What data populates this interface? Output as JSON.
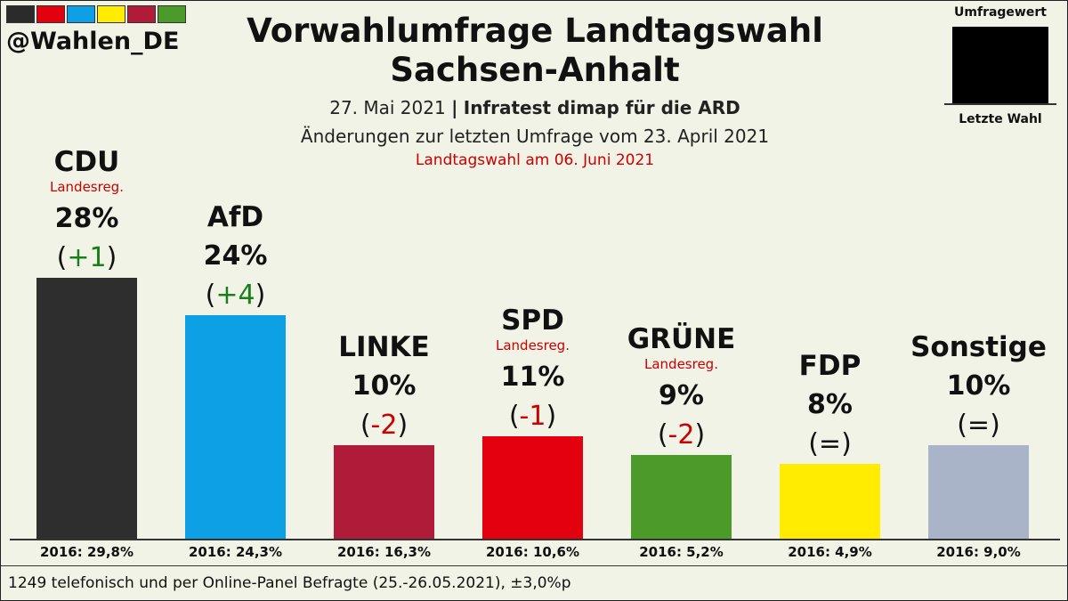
{
  "brand": {
    "handle": "@Wahlen_DE",
    "stripe_colors": [
      "#2b2b2b",
      "#e3000f",
      "#0ea0e4",
      "#ffec00",
      "#b11b3a",
      "#4c9a2a"
    ]
  },
  "header": {
    "title_line1": "Vorwahlumfrage Landtagswahl",
    "title_line2": "Sachsen-Anhalt",
    "date": "27. Mai 2021",
    "separator": "|",
    "pollster": "Infratest dimap für die ARD",
    "change_note": "Änderungen zur letzten Umfrage vom 23. April 2021",
    "election_note": "Landtagswahl am 06. Juni 2021"
  },
  "legend": {
    "top": "Umfragewert",
    "bottom": "Letzte Wahl"
  },
  "footer": {
    "text": "1249 telefonisch und per Online-Panel  Befragte (25.-26.05.2021), ±3,0%p"
  },
  "chart_data": {
    "type": "bar",
    "title": "Vorwahlumfrage Landtagswahl Sachsen-Anhalt",
    "ylim": [
      0,
      35
    ],
    "categories": [
      "CDU",
      "AfD",
      "LINKE",
      "SPD",
      "GRÜNE",
      "FDP",
      "Sonstige"
    ],
    "values": [
      28,
      24,
      10,
      11,
      9,
      8,
      10
    ],
    "bars": [
      {
        "party": "CDU",
        "value": 28,
        "pct_label": "28%",
        "change": "+1",
        "change_color": "#1a7f1a",
        "landesreg": "Landesreg.",
        "prev_label": "2016: 29,8%",
        "color": "#2e2e2e"
      },
      {
        "party": "AfD",
        "value": 24,
        "pct_label": "24%",
        "change": "+4",
        "change_color": "#1a7f1a",
        "landesreg": "",
        "prev_label": "2016: 24,3%",
        "color": "#0ea0e4"
      },
      {
        "party": "LINKE",
        "value": 10,
        "pct_label": "10%",
        "change": "-2",
        "change_color": "#cc0000",
        "landesreg": "",
        "prev_label": "2016: 16,3%",
        "color": "#b11b3a"
      },
      {
        "party": "SPD",
        "value": 11,
        "pct_label": "11%",
        "change": "-1",
        "change_color": "#cc0000",
        "landesreg": "Landesreg.",
        "prev_label": "2016: 10,6%",
        "color": "#e3000f"
      },
      {
        "party": "GRÜNE",
        "value": 9,
        "pct_label": "9%",
        "change": "-2",
        "change_color": "#cc0000",
        "landesreg": "Landesreg.",
        "prev_label": "2016: 5,2%",
        "color": "#4c9a2a"
      },
      {
        "party": "FDP",
        "value": 8,
        "pct_label": "8%",
        "change": "=",
        "change_color": "#111111",
        "landesreg": "",
        "prev_label": "2016: 4,9%",
        "color": "#ffec00"
      },
      {
        "party": "Sonstige",
        "value": 10,
        "pct_label": "10%",
        "change": "=",
        "change_color": "#111111",
        "landesreg": "",
        "prev_label": "2016: 9,0%",
        "color": "#aab4c8"
      }
    ]
  }
}
